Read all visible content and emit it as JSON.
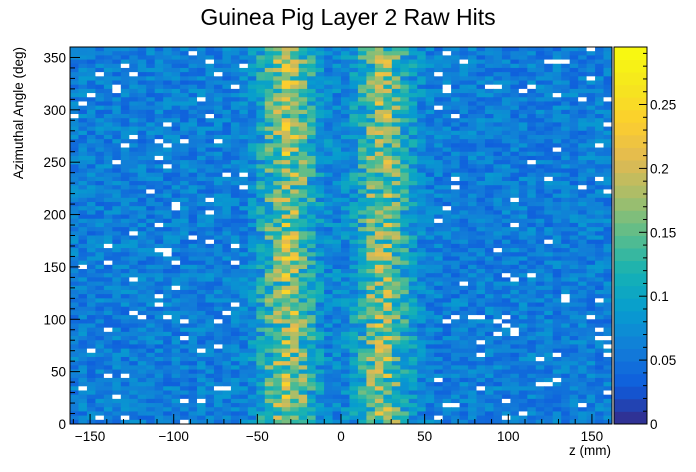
{
  "chart_data": {
    "type": "heatmap",
    "title": "Guinea Pig Layer 2 Raw Hits",
    "xlabel": "z (mm)",
    "ylabel": "Azimuthal Angle (deg)",
    "x_range": [
      -162,
      162
    ],
    "y_range": [
      0,
      360
    ],
    "x_bins": 64,
    "y_bins": 90,
    "x_ticks": [
      -150,
      -100,
      -50,
      0,
      50,
      100,
      150
    ],
    "x_tick_labels": [
      "−150",
      "−100",
      "−50",
      "0",
      "50",
      "100",
      "150"
    ],
    "y_ticks": [
      0,
      50,
      100,
      150,
      200,
      250,
      300,
      350
    ],
    "y_tick_labels": [
      "0",
      "50",
      "100",
      "150",
      "200",
      "250",
      "300",
      "350"
    ],
    "z_range": [
      0,
      0.295
    ],
    "z_ticks": [
      0,
      0.05,
      0.1,
      0.15,
      0.2,
      0.25
    ],
    "z_tick_labels": [
      "0",
      "0.05",
      "0.1",
      "0.15",
      "0.2",
      "0.25"
    ],
    "colormap": "parula",
    "baseline_level": 0.06,
    "peak_bands": [
      {
        "z_center": -32,
        "width": 11,
        "level": 0.17
      },
      {
        "z_center": 25,
        "width": 11,
        "level": 0.16
      }
    ],
    "grid": false,
    "colorbar": "right"
  }
}
